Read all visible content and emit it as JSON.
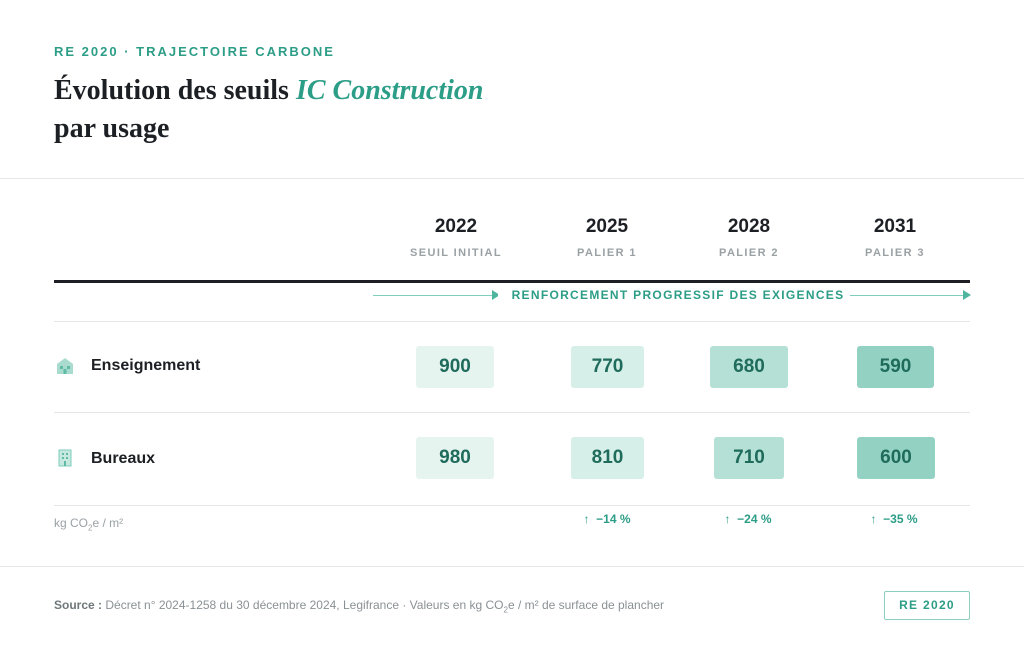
{
  "header": {
    "kicker": "RE 2020 · TRAJECTOIRE CARBONE",
    "title_part1": "Évolution des seuils ",
    "title_accent": "IC Construction",
    "title_part2": "par usage"
  },
  "columns": [
    {
      "year": "2022",
      "label": "SEUIL INITIAL"
    },
    {
      "year": "2025",
      "label": "PALIER 1"
    },
    {
      "year": "2028",
      "label": "PALIER 2"
    },
    {
      "year": "2031",
      "label": "PALIER 3"
    }
  ],
  "progress_label": "RENFORCEMENT PROGRESSIF DES EXIGENCES",
  "rows": [
    {
      "label": "Enseignement",
      "icon": "school-building-icon",
      "values": [
        "900",
        "770",
        "680",
        "590"
      ]
    },
    {
      "label": "Bureaux",
      "icon": "office-building-icon",
      "values": [
        "980",
        "810",
        "710",
        "600"
      ]
    }
  ],
  "unit": {
    "pre": "kg CO",
    "sub": "2",
    "post": "e / m²"
  },
  "deltas": [
    "−14 %",
    "−24 %",
    "−35 %"
  ],
  "delta_arrow": "↑",
  "footer": {
    "source_label": "Source :",
    "source_pre": " Décret n° 2024-1258 du 30 décembre 2024, Legifrance · Valeurs en kg CO",
    "source_sub": "2",
    "source_post": "e / m² de surface de plancher",
    "badge": "RE 2020"
  },
  "colors": {
    "accent": "#2c9d86",
    "text": "#1c2024",
    "muted": "#9aa1a4"
  }
}
